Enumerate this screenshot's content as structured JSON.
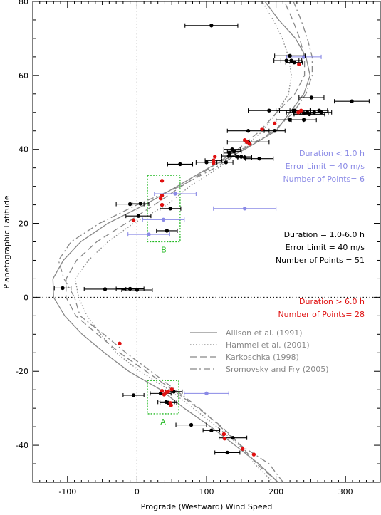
{
  "chart_data": {
    "type": "scatter",
    "xlabel": "Prograde (Westward) Wind Speed",
    "ylabel": "Planetographic Latitude",
    "xlim": [
      -150,
      350
    ],
    "ylim": [
      -50,
      80
    ],
    "xticks": [
      -100,
      0,
      100,
      200,
      300
    ],
    "yticks": [
      -40,
      -20,
      0,
      20,
      40,
      60,
      80
    ],
    "grid": false,
    "reference_lines": {
      "x": 0,
      "y": 0,
      "style": "dotted"
    },
    "colors": {
      "blue": "#8a8ae6",
      "black": "#000000",
      "red": "#e01010",
      "gray": "#888888",
      "green": "#22b922"
    },
    "groups": [
      {
        "color": "#8a8ae6",
        "annotation": [
          "Duration < 1.0 h",
          "Error Limit =  40 m/s",
          "Number of Points=   6"
        ],
        "points": [
          {
            "x": 240,
            "y": 65.0,
            "xerr": 25
          },
          {
            "x": 55,
            "y": 28.0,
            "xerr": 30
          },
          {
            "x": 155,
            "y": 24.0,
            "xerr": 45
          },
          {
            "x": 38,
            "y": 21.0,
            "xerr": 30
          },
          {
            "x": 17,
            "y": 17.0,
            "xerr": 30
          },
          {
            "x": 100,
            "y": -26.0,
            "xerr": 32
          }
        ]
      },
      {
        "color": "#000000",
        "annotation": [
          "Duration = 1.0-6.0 h",
          "Error Limit =  40 m/s",
          "Number of Points =  51"
        ],
        "points": [
          {
            "x": 107,
            "y": 73.5,
            "xerr": 38
          },
          {
            "x": 220,
            "y": 65.3,
            "xerr": 22
          },
          {
            "x": 215,
            "y": 64.0,
            "xerr": 18
          },
          {
            "x": 222,
            "y": 64.0,
            "xerr": 15
          },
          {
            "x": 226,
            "y": 63.5,
            "xerr": 12
          },
          {
            "x": 251,
            "y": 54.0,
            "xerr": 18
          },
          {
            "x": 309,
            "y": 53.0,
            "xerr": 25
          },
          {
            "x": 190,
            "y": 50.5,
            "xerr": 30
          },
          {
            "x": 225,
            "y": 50.5,
            "xerr": 25
          },
          {
            "x": 245,
            "y": 50.0,
            "xerr": 30
          },
          {
            "x": 255,
            "y": 50.0,
            "xerr": 20
          },
          {
            "x": 262,
            "y": 50.5,
            "xerr": 12
          },
          {
            "x": 248,
            "y": 49.5,
            "xerr": 22
          },
          {
            "x": 240,
            "y": 49.8,
            "xerr": 15
          },
          {
            "x": 265,
            "y": 50.0,
            "xerr": 15
          },
          {
            "x": 220,
            "y": 48.0,
            "xerr": 20
          },
          {
            "x": 240,
            "y": 48.0,
            "xerr": 18
          },
          {
            "x": 160,
            "y": 45.0,
            "xerr": 30
          },
          {
            "x": 198,
            "y": 45.0,
            "xerr": 15
          },
          {
            "x": 160,
            "y": 42.0,
            "xerr": 30
          },
          {
            "x": 137,
            "y": 40.0,
            "xerr": 12
          },
          {
            "x": 140,
            "y": 39.5,
            "xerr": 10
          },
          {
            "x": 133,
            "y": 39.0,
            "xerr": 8
          },
          {
            "x": 132,
            "y": 38.2,
            "xerr": 10
          },
          {
            "x": 145,
            "y": 38.0,
            "xerr": 10
          },
          {
            "x": 150,
            "y": 38.0,
            "xerr": 15
          },
          {
            "x": 176,
            "y": 37.5,
            "xerr": 20
          },
          {
            "x": 155,
            "y": 37.8,
            "xerr": 10
          },
          {
            "x": 110,
            "y": 37.0,
            "xerr": 12
          },
          {
            "x": 100,
            "y": 36.5,
            "xerr": 15
          },
          {
            "x": 62,
            "y": 36.0,
            "xerr": 18
          },
          {
            "x": 128,
            "y": 36.5,
            "xerr": 10
          },
          {
            "x": -10,
            "y": 25.2,
            "xerr": 20
          },
          {
            "x": 5,
            "y": 25.3,
            "xerr": 12
          },
          {
            "x": 48,
            "y": 24.0,
            "xerr": 15
          },
          {
            "x": 2,
            "y": 22.0,
            "xerr": 18
          },
          {
            "x": 43,
            "y": 18.0,
            "xerr": 15
          },
          {
            "x": -107,
            "y": 2.5,
            "xerr": 12
          },
          {
            "x": -46,
            "y": 2.2,
            "xerr": 30
          },
          {
            "x": -10,
            "y": 2.3,
            "xerr": 20
          },
          {
            "x": 0,
            "y": 2.0,
            "xerr": 22
          },
          {
            "x": -5,
            "y": -26.5,
            "xerr": 15
          },
          {
            "x": 53,
            "y": -25.5,
            "xerr": 12
          },
          {
            "x": 34,
            "y": -26.0,
            "xerr": 15
          },
          {
            "x": 42,
            "y": -28.3,
            "xerr": 12
          },
          {
            "x": 45,
            "y": -28.5,
            "xerr": 12
          },
          {
            "x": 78,
            "y": -34.5,
            "xerr": 22
          },
          {
            "x": 107,
            "y": -36.0,
            "xerr": 12
          },
          {
            "x": 138,
            "y": -38.0,
            "xerr": 20
          },
          {
            "x": 130,
            "y": -42.0,
            "xerr": 18
          },
          {
            "x": 227,
            "y": 50.5,
            "xerr": 22
          }
        ]
      },
      {
        "color": "#e01010",
        "annotation": [
          "Duration > 6.0 h",
          "Number of Points=  28"
        ],
        "points": [
          {
            "x": 233,
            "y": 63.0
          },
          {
            "x": 236,
            "y": 50.5
          },
          {
            "x": 232,
            "y": 50.0
          },
          {
            "x": 198,
            "y": 47.0
          },
          {
            "x": 180,
            "y": 45.5
          },
          {
            "x": 155,
            "y": 42.5
          },
          {
            "x": 158,
            "y": 42.0
          },
          {
            "x": 162,
            "y": 41.5
          },
          {
            "x": 112,
            "y": 38.0
          },
          {
            "x": 110,
            "y": 37.0
          },
          {
            "x": 110,
            "y": 36.3
          },
          {
            "x": 36,
            "y": 31.5
          },
          {
            "x": 36,
            "y": 27.5
          },
          {
            "x": 34,
            "y": 26.7
          },
          {
            "x": 36,
            "y": 25.0
          },
          {
            "x": -5,
            "y": 20.8
          },
          {
            "x": -25,
            "y": -12.5
          },
          {
            "x": 36,
            "y": -25.3
          },
          {
            "x": 42,
            "y": -25.7
          },
          {
            "x": 45,
            "y": -25.5
          },
          {
            "x": 39,
            "y": -26.3
          },
          {
            "x": 50,
            "y": -24.9
          },
          {
            "x": 48,
            "y": -28.6
          },
          {
            "x": 49,
            "y": -29.2
          },
          {
            "x": 125,
            "y": -37.0
          },
          {
            "x": 126,
            "y": -38.2
          },
          {
            "x": 152,
            "y": -41.0
          },
          {
            "x": 168,
            "y": -42.5
          }
        ]
      }
    ],
    "boxes": [
      {
        "label": "A",
        "x": [
          15,
          60
        ],
        "y": [
          -31.5,
          -22.5
        ]
      },
      {
        "label": "B",
        "x": [
          15,
          62
        ],
        "y": [
          15,
          33
        ]
      }
    ],
    "legend": {
      "placement": "lower-right",
      "entries": [
        {
          "label": "Allison et al. (1991)",
          "style": "solid"
        },
        {
          "label": "Hammel et al. (2001)",
          "style": "dotted"
        },
        {
          "label": "Karkoschka (1998)",
          "style": "dashed"
        },
        {
          "label": "Sromovsky and Fry (2005)",
          "style": "dashdot"
        }
      ]
    },
    "model_curves": [
      {
        "style": "solid",
        "points": [
          [
            203,
            -50
          ],
          [
            175,
            -45
          ],
          [
            141,
            -40
          ],
          [
            106,
            -35
          ],
          [
            68,
            -30
          ],
          [
            34,
            -25
          ],
          [
            -12,
            -20
          ],
          [
            -47,
            -15
          ],
          [
            -79,
            -10
          ],
          [
            -104,
            -5
          ],
          [
            -120,
            0
          ],
          [
            -121,
            5
          ],
          [
            -106,
            10
          ],
          [
            -81,
            15
          ],
          [
            -42,
            20
          ],
          [
            11,
            25
          ],
          [
            58,
            30
          ],
          [
            103,
            35
          ],
          [
            155,
            40
          ],
          [
            200,
            45
          ],
          [
            220,
            50
          ],
          [
            240,
            55
          ],
          [
            249,
            60
          ],
          [
            243,
            65
          ],
          [
            228,
            70
          ],
          [
            204,
            75
          ],
          [
            184,
            80
          ]
        ]
      },
      {
        "style": "dotted",
        "points": [
          [
            196,
            -50
          ],
          [
            169,
            -45
          ],
          [
            147,
            -40
          ],
          [
            115,
            -35
          ],
          [
            81,
            -30
          ],
          [
            46,
            -25
          ],
          [
            4,
            -20
          ],
          [
            -30,
            -15
          ],
          [
            -52,
            -10
          ],
          [
            -72,
            -5
          ],
          [
            -84,
            0
          ],
          [
            -89,
            5
          ],
          [
            -70,
            10
          ],
          [
            -42,
            15
          ],
          [
            -5,
            20
          ],
          [
            43,
            25
          ],
          [
            76,
            30
          ],
          [
            117,
            35
          ],
          [
            151,
            40
          ],
          [
            181,
            45
          ],
          [
            201,
            50
          ],
          [
            218,
            55
          ],
          [
            222,
            60
          ],
          [
            218,
            65
          ],
          [
            209,
            70
          ],
          [
            196,
            75
          ],
          [
            180,
            80
          ]
        ]
      },
      {
        "style": "dashed",
        "points": [
          [
            203,
            -50
          ],
          [
            172,
            -45
          ],
          [
            149,
            -40
          ],
          [
            122,
            -35
          ],
          [
            88,
            -30
          ],
          [
            51,
            -25
          ],
          [
            13,
            -20
          ],
          [
            -25,
            -15
          ],
          [
            -57,
            -10
          ],
          [
            -88,
            -5
          ],
          [
            -102,
            0
          ],
          [
            -102,
            5
          ],
          [
            -87,
            10
          ],
          [
            -58,
            15
          ],
          [
            -16,
            20
          ],
          [
            25,
            25
          ],
          [
            64,
            30
          ],
          [
            105,
            35
          ],
          [
            145,
            40
          ],
          [
            177,
            45
          ],
          [
            201,
            50
          ],
          [
            227,
            55
          ],
          [
            241,
            60
          ],
          [
            241,
            65
          ],
          [
            234,
            70
          ],
          [
            224,
            75
          ],
          [
            212,
            80
          ]
        ]
      },
      {
        "style": "dashdot",
        "points": [
          [
            210,
            -50
          ],
          [
            190,
            -45
          ],
          [
            149,
            -40
          ],
          [
            120,
            -35
          ],
          [
            90,
            -30
          ],
          [
            55,
            -25
          ],
          [
            20,
            -20
          ],
          [
            -16,
            -15
          ],
          [
            -48,
            -10
          ],
          [
            -82,
            -5
          ],
          [
            -90,
            0
          ],
          [
            -105,
            5
          ],
          [
            -113,
            10
          ],
          [
            -95,
            15
          ],
          [
            -54,
            20
          ],
          [
            0,
            25
          ],
          [
            62,
            30
          ],
          [
            112,
            35
          ],
          [
            152,
            40
          ],
          [
            197,
            45
          ],
          [
            225,
            50
          ],
          [
            243,
            55
          ],
          [
            252,
            60
          ],
          [
            252,
            65
          ],
          [
            245,
            70
          ],
          [
            236,
            75
          ],
          [
            225,
            80
          ]
        ]
      }
    ]
  }
}
